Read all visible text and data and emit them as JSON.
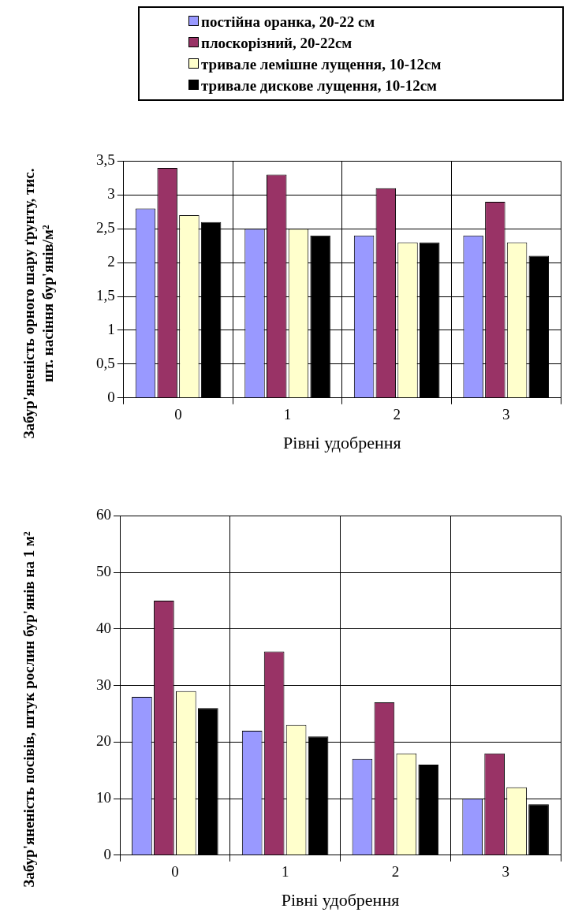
{
  "chart_data": [
    {
      "type": "bar",
      "categories": [
        "0",
        "1",
        "2",
        "3"
      ],
      "xlabel": "Рівні удобрення",
      "ylabel": "Забур'яненість орного шару ґрунту, тис. шт. насіння бур'янів/м²",
      "ylim": [
        0,
        3.5
      ],
      "yticks": [
        0,
        {
          "value": 0.5,
          "label": "0,5"
        },
        1,
        {
          "value": 1.5,
          "label": "1,5"
        },
        2,
        {
          "value": 2.5,
          "label": "2,5"
        },
        3,
        {
          "value": 3.5,
          "label": "3,5"
        }
      ],
      "grid": true,
      "legend": "top",
      "series": [
        {
          "name": "постійна оранка, 20-22 см",
          "color": "#9999ff",
          "values": [
            2.8,
            2.5,
            2.4,
            2.4
          ]
        },
        {
          "name": "плоскорізний, 20-22см",
          "color": "#993366",
          "values": [
            3.4,
            3.3,
            3.1,
            2.9
          ]
        },
        {
          "name": "тривале лемішне лущення, 10-12см",
          "color": "#ffffcc",
          "values": [
            2.7,
            2.5,
            2.3,
            2.3
          ]
        },
        {
          "name": "тривале дискове лущення, 10-12см",
          "color": "#000000",
          "values": [
            2.6,
            2.4,
            2.3,
            2.1
          ]
        }
      ]
    },
    {
      "type": "bar",
      "categories": [
        "0",
        "1",
        "2",
        "3"
      ],
      "xlabel": "Рівні удобрення",
      "ylabel": "Забур'яненість посівів, штук рослин бур'янів на 1 м²",
      "ylim": [
        0,
        60
      ],
      "yticks": [
        0,
        10,
        20,
        30,
        40,
        50,
        60
      ],
      "grid": true,
      "series": [
        {
          "color": "#9999ff",
          "values": [
            28,
            22,
            17,
            10
          ]
        },
        {
          "color": "#993366",
          "values": [
            45,
            36,
            27,
            18
          ]
        },
        {
          "color": "#ffffcc",
          "values": [
            29,
            23,
            18,
            12
          ]
        },
        {
          "color": "#000000",
          "values": [
            26,
            21,
            16,
            9
          ]
        }
      ]
    }
  ]
}
